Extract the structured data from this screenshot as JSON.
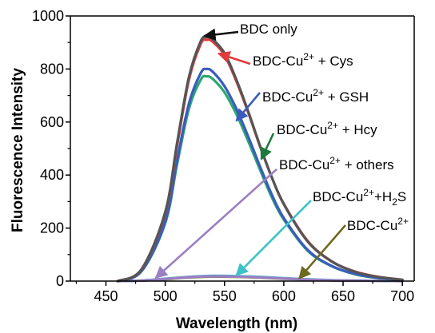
{
  "chart_data": {
    "type": "line",
    "xlabel": "Wavelength (nm)",
    "ylabel": "Fluorescence Intensity",
    "xlim": [
      420,
      710
    ],
    "ylim": [
      0,
      1000
    ],
    "x_ticks": [
      450,
      500,
      550,
      600,
      650,
      700
    ],
    "y_ticks": [
      0,
      200,
      400,
      600,
      800,
      1000
    ],
    "grid": false,
    "legend": "none",
    "series": [
      {
        "name": "BDC only",
        "color": "#555555",
        "x": [
          460,
          480,
          500,
          510,
          520,
          530,
          535,
          540,
          550,
          560,
          570,
          580,
          590,
          600,
          620,
          640,
          660,
          680,
          700
        ],
        "y": [
          0,
          45,
          260,
          520,
          770,
          905,
          920,
          912,
          860,
          760,
          640,
          510,
          390,
          290,
          150,
          75,
          35,
          15,
          5
        ]
      },
      {
        "name": "BDC-Cu2+ + Cys",
        "color": "#e03c3c",
        "x": [
          460,
          480,
          500,
          510,
          520,
          530,
          535,
          540,
          550,
          560,
          570,
          580,
          590,
          600,
          620,
          640,
          660,
          680,
          700
        ],
        "y": [
          0,
          44,
          255,
          510,
          760,
          895,
          910,
          903,
          852,
          754,
          636,
          508,
          390,
          292,
          152,
          76,
          36,
          16,
          5
        ]
      },
      {
        "name": "BDC-Cu2+ + GSH",
        "color": "#3a5bbf",
        "x": [
          460,
          480,
          500,
          510,
          520,
          530,
          535,
          540,
          550,
          560,
          570,
          580,
          590,
          600,
          620,
          640,
          660,
          680,
          700
        ],
        "y": [
          0,
          38,
          225,
          455,
          670,
          785,
          800,
          790,
          735,
          650,
          545,
          432,
          325,
          238,
          118,
          58,
          27,
          12,
          4
        ]
      },
      {
        "name": "BDC-Cu2+ + Hcy",
        "color": "#2aa86f",
        "x": [
          460,
          480,
          500,
          510,
          520,
          530,
          535,
          540,
          550,
          560,
          570,
          580,
          590,
          600,
          620,
          640,
          660,
          680,
          700
        ],
        "y": [
          0,
          37,
          218,
          440,
          650,
          760,
          772,
          763,
          712,
          630,
          528,
          420,
          315,
          232,
          115,
          57,
          26,
          11,
          4
        ]
      },
      {
        "name": "BDC-Cu2+ + others",
        "color": "#9a7fc4",
        "x": [
          460,
          480,
          500,
          520,
          540,
          560,
          580,
          600,
          620,
          640,
          660,
          680,
          700
        ],
        "y": [
          0,
          2,
          8,
          15,
          18,
          17,
          14,
          10,
          6,
          3,
          2,
          1,
          0
        ]
      },
      {
        "name": "BDC-Cu2+ + H2S",
        "color": "#3fc1c9",
        "x": [
          460,
          480,
          500,
          520,
          540,
          560,
          580,
          600,
          620,
          640,
          660,
          680,
          700
        ],
        "y": [
          0,
          2,
          9,
          16,
          20,
          19,
          16,
          11,
          7,
          4,
          2,
          1,
          0
        ]
      },
      {
        "name": "BDC-Cu2+",
        "color": "#7a7a2a",
        "x": [
          460,
          480,
          500,
          520,
          540,
          560,
          580,
          600,
          620,
          640,
          660,
          680,
          700
        ],
        "y": [
          0,
          2,
          7,
          14,
          17,
          16,
          13,
          9,
          6,
          3,
          2,
          1,
          0
        ]
      }
    ],
    "annotations": [
      {
        "text": "BDC only",
        "sup": "",
        "after": "",
        "sub": "",
        "tail": "",
        "color": "#111111",
        "tip": [
          533,
          925
        ]
      },
      {
        "text": "BDC-Cu",
        "sup": "2+",
        "after": " + Cys",
        "sub": "",
        "tail": "",
        "color": "#e03c3c",
        "tip": [
          545,
          858
        ]
      },
      {
        "text": "BDC-Cu",
        "sup": "2+",
        "after": " + GSH",
        "sub": "",
        "tail": "",
        "color": "#3a5bbf",
        "tip": [
          560,
          605
        ]
      },
      {
        "text": "BDC-Cu",
        "sup": "2+",
        "after": " + Hcy",
        "sub": "",
        "tail": "",
        "color": "#1e7a3c",
        "tip": [
          581,
          460
        ]
      },
      {
        "text": "BDC-Cu",
        "sup": "2+",
        "after": " + others",
        "sub": "",
        "tail": "",
        "color": "#9a7fc4",
        "tip": [
          492,
          12
        ]
      },
      {
        "text": "BDC-Cu",
        "sup": "2+",
        "after": "+H",
        "sub": "2",
        "tail": "S",
        "color": "#3fc1c9",
        "tip": [
          560,
          22
        ]
      },
      {
        "text": "BDC-Cu",
        "sup": "2+",
        "after": "",
        "sub": "",
        "tail": "",
        "color": "#6b6b1e",
        "tip": [
          613,
          10
        ]
      }
    ]
  }
}
